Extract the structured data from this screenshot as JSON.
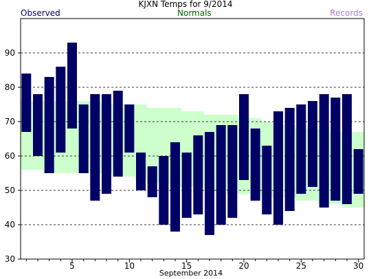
{
  "header": {
    "title": "KJXN Temps for 9/2014",
    "observed_label": "Observed",
    "normals_label": "Normals",
    "records_label": "Records"
  },
  "colors": {
    "observed": "#000066",
    "normals_band": "#ccffcc",
    "normals_text": "#006600",
    "records_text": "#a982cf",
    "grid": "#333333"
  },
  "chart_data": {
    "type": "bar",
    "title": "KJXN Temps for 9/2014",
    "xlabel": "September 2014",
    "ylabel": "",
    "ylim": [
      30,
      100
    ],
    "xlim": [
      0.5,
      30.5
    ],
    "yticks": [
      30,
      40,
      50,
      60,
      70,
      80,
      90
    ],
    "xticks": [
      5,
      10,
      15,
      20,
      25,
      30
    ],
    "grid": "horizontal dashed",
    "legend": "top",
    "days": [
      1,
      2,
      3,
      4,
      5,
      6,
      7,
      8,
      9,
      10,
      11,
      12,
      13,
      14,
      15,
      16,
      17,
      18,
      19,
      20,
      21,
      22,
      23,
      24,
      25,
      26,
      27,
      28,
      29,
      30
    ],
    "series": [
      {
        "name": "Observed",
        "high": [
          84,
          78,
          83,
          86,
          93,
          75,
          78,
          78,
          79,
          75,
          61,
          57,
          60,
          64,
          61,
          66,
          67,
          69,
          69,
          78,
          68,
          63,
          73,
          74,
          75,
          76,
          78,
          77,
          78,
          62
        ],
        "low": [
          67,
          60,
          55,
          61,
          68,
          55,
          47,
          49,
          54,
          61,
          50,
          48,
          40,
          38,
          42,
          43,
          37,
          40,
          42,
          53,
          47,
          43,
          40,
          44,
          49,
          51,
          45,
          47,
          46,
          49
        ]
      },
      {
        "name": "Normals",
        "high": [
          76,
          76,
          76,
          76,
          76,
          76,
          76,
          75,
          75,
          75,
          75,
          74,
          74,
          74,
          73,
          73,
          72,
          72,
          72,
          71,
          71,
          70,
          69,
          69,
          68,
          68,
          68,
          67,
          67,
          67
        ],
        "low": [
          56,
          56,
          55,
          55,
          55,
          55,
          55,
          55,
          54,
          54,
          53,
          52,
          52,
          51,
          51,
          51,
          50,
          50,
          49,
          49,
          49,
          48,
          48,
          48,
          47,
          47,
          46,
          46,
          45,
          45
        ]
      }
    ]
  }
}
